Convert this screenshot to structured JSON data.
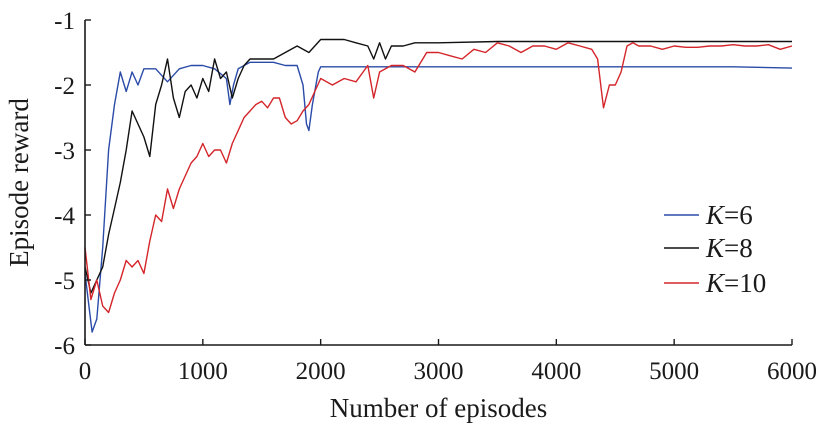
{
  "chart_data": {
    "type": "line",
    "title": "",
    "xlabel": "Number of episodes",
    "ylabel": "Episode reward",
    "xlim": [
      0,
      6000
    ],
    "ylim": [
      -6,
      -1
    ],
    "xticks": [
      "0",
      "1000",
      "2000",
      "3000",
      "4000",
      "5000",
      "6000"
    ],
    "yticks": [
      "-1",
      "-2",
      "-3",
      "-4",
      "-5",
      "-6"
    ],
    "grid": false,
    "legend_position": "right",
    "series": [
      {
        "name": "K=6",
        "legend_italic": "K",
        "legend_rest": "=6",
        "color": "#2a4ba8",
        "x": [
          0,
          60,
          100,
          150,
          200,
          250,
          300,
          350,
          400,
          450,
          500,
          600,
          700,
          800,
          900,
          1000,
          1100,
          1200,
          1230,
          1260,
          1300,
          1400,
          1500,
          1600,
          1700,
          1800,
          1850,
          1880,
          1900,
          1930,
          1980,
          2000,
          2100,
          2500,
          3000,
          3500,
          4000,
          4500,
          5000,
          5500,
          6000
        ],
        "y": [
          -4.9,
          -5.8,
          -5.6,
          -4.5,
          -3.0,
          -2.3,
          -1.8,
          -2.1,
          -1.8,
          -2.0,
          -1.75,
          -1.75,
          -1.95,
          -1.75,
          -1.7,
          -1.7,
          -1.75,
          -1.9,
          -2.3,
          -2.0,
          -1.75,
          -1.65,
          -1.65,
          -1.65,
          -1.7,
          -1.7,
          -2.0,
          -2.6,
          -2.7,
          -2.3,
          -1.8,
          -1.72,
          -1.72,
          -1.72,
          -1.72,
          -1.72,
          -1.72,
          -1.72,
          -1.72,
          -1.72,
          -1.74
        ]
      },
      {
        "name": "K=8",
        "legend_italic": "K",
        "legend_rest": "=8",
        "color": "#111111",
        "x": [
          0,
          50,
          100,
          150,
          200,
          250,
          300,
          350,
          400,
          450,
          500,
          550,
          600,
          650,
          700,
          750,
          800,
          850,
          900,
          950,
          1000,
          1050,
          1100,
          1150,
          1200,
          1250,
          1300,
          1350,
          1400,
          1500,
          1600,
          1700,
          1800,
          1900,
          2000,
          2100,
          2200,
          2300,
          2400,
          2450,
          2500,
          2550,
          2600,
          2700,
          2800,
          3000,
          3500,
          4000,
          4500,
          5000,
          5500,
          6000
        ],
        "y": [
          -4.8,
          -5.2,
          -5.0,
          -4.8,
          -4.3,
          -3.9,
          -3.5,
          -3.0,
          -2.4,
          -2.6,
          -2.8,
          -3.1,
          -2.3,
          -2.0,
          -1.6,
          -2.2,
          -2.5,
          -2.1,
          -2.0,
          -2.2,
          -1.9,
          -2.1,
          -1.6,
          -1.9,
          -1.8,
          -2.2,
          -1.9,
          -1.7,
          -1.6,
          -1.6,
          -1.6,
          -1.5,
          -1.4,
          -1.5,
          -1.3,
          -1.3,
          -1.3,
          -1.35,
          -1.4,
          -1.6,
          -1.35,
          -1.6,
          -1.4,
          -1.4,
          -1.35,
          -1.35,
          -1.33,
          -1.33,
          -1.33,
          -1.33,
          -1.33,
          -1.33
        ]
      },
      {
        "name": "K=10",
        "legend_italic": "K",
        "legend_rest": "=10",
        "color": "#d4252a",
        "x": [
          0,
          50,
          100,
          150,
          200,
          250,
          300,
          350,
          400,
          450,
          500,
          550,
          600,
          650,
          700,
          750,
          800,
          850,
          900,
          950,
          1000,
          1050,
          1100,
          1150,
          1200,
          1250,
          1300,
          1350,
          1400,
          1450,
          1500,
          1550,
          1600,
          1650,
          1700,
          1750,
          1800,
          1850,
          1900,
          1950,
          2000,
          2100,
          2200,
          2300,
          2400,
          2450,
          2500,
          2600,
          2700,
          2800,
          2900,
          3000,
          3100,
          3200,
          3300,
          3400,
          3500,
          3600,
          3700,
          3800,
          3900,
          4000,
          4100,
          4200,
          4300,
          4350,
          4400,
          4450,
          4500,
          4550,
          4600,
          4650,
          4700,
          4800,
          4900,
          5000,
          5100,
          5200,
          5300,
          5400,
          5500,
          5600,
          5700,
          5800,
          5900,
          6000
        ],
        "y": [
          -4.5,
          -5.3,
          -5.0,
          -5.4,
          -5.5,
          -5.2,
          -5.0,
          -4.7,
          -4.8,
          -4.7,
          -4.9,
          -4.4,
          -4.0,
          -4.1,
          -3.6,
          -3.9,
          -3.6,
          -3.4,
          -3.2,
          -3.1,
          -2.9,
          -3.1,
          -3.0,
          -3.0,
          -3.2,
          -2.9,
          -2.7,
          -2.5,
          -2.4,
          -2.3,
          -2.25,
          -2.35,
          -2.2,
          -2.2,
          -2.5,
          -2.6,
          -2.55,
          -2.4,
          -2.3,
          -2.1,
          -1.9,
          -2.0,
          -1.9,
          -1.95,
          -1.7,
          -2.2,
          -1.8,
          -1.7,
          -1.7,
          -1.8,
          -1.5,
          -1.5,
          -1.55,
          -1.6,
          -1.45,
          -1.5,
          -1.35,
          -1.4,
          -1.5,
          -1.4,
          -1.4,
          -1.45,
          -1.35,
          -1.4,
          -1.45,
          -1.6,
          -2.35,
          -2.0,
          -2.0,
          -1.8,
          -1.4,
          -1.35,
          -1.4,
          -1.4,
          -1.45,
          -1.4,
          -1.42,
          -1.42,
          -1.4,
          -1.4,
          -1.38,
          -1.4,
          -1.4,
          -1.38,
          -1.45,
          -1.4
        ]
      }
    ]
  }
}
